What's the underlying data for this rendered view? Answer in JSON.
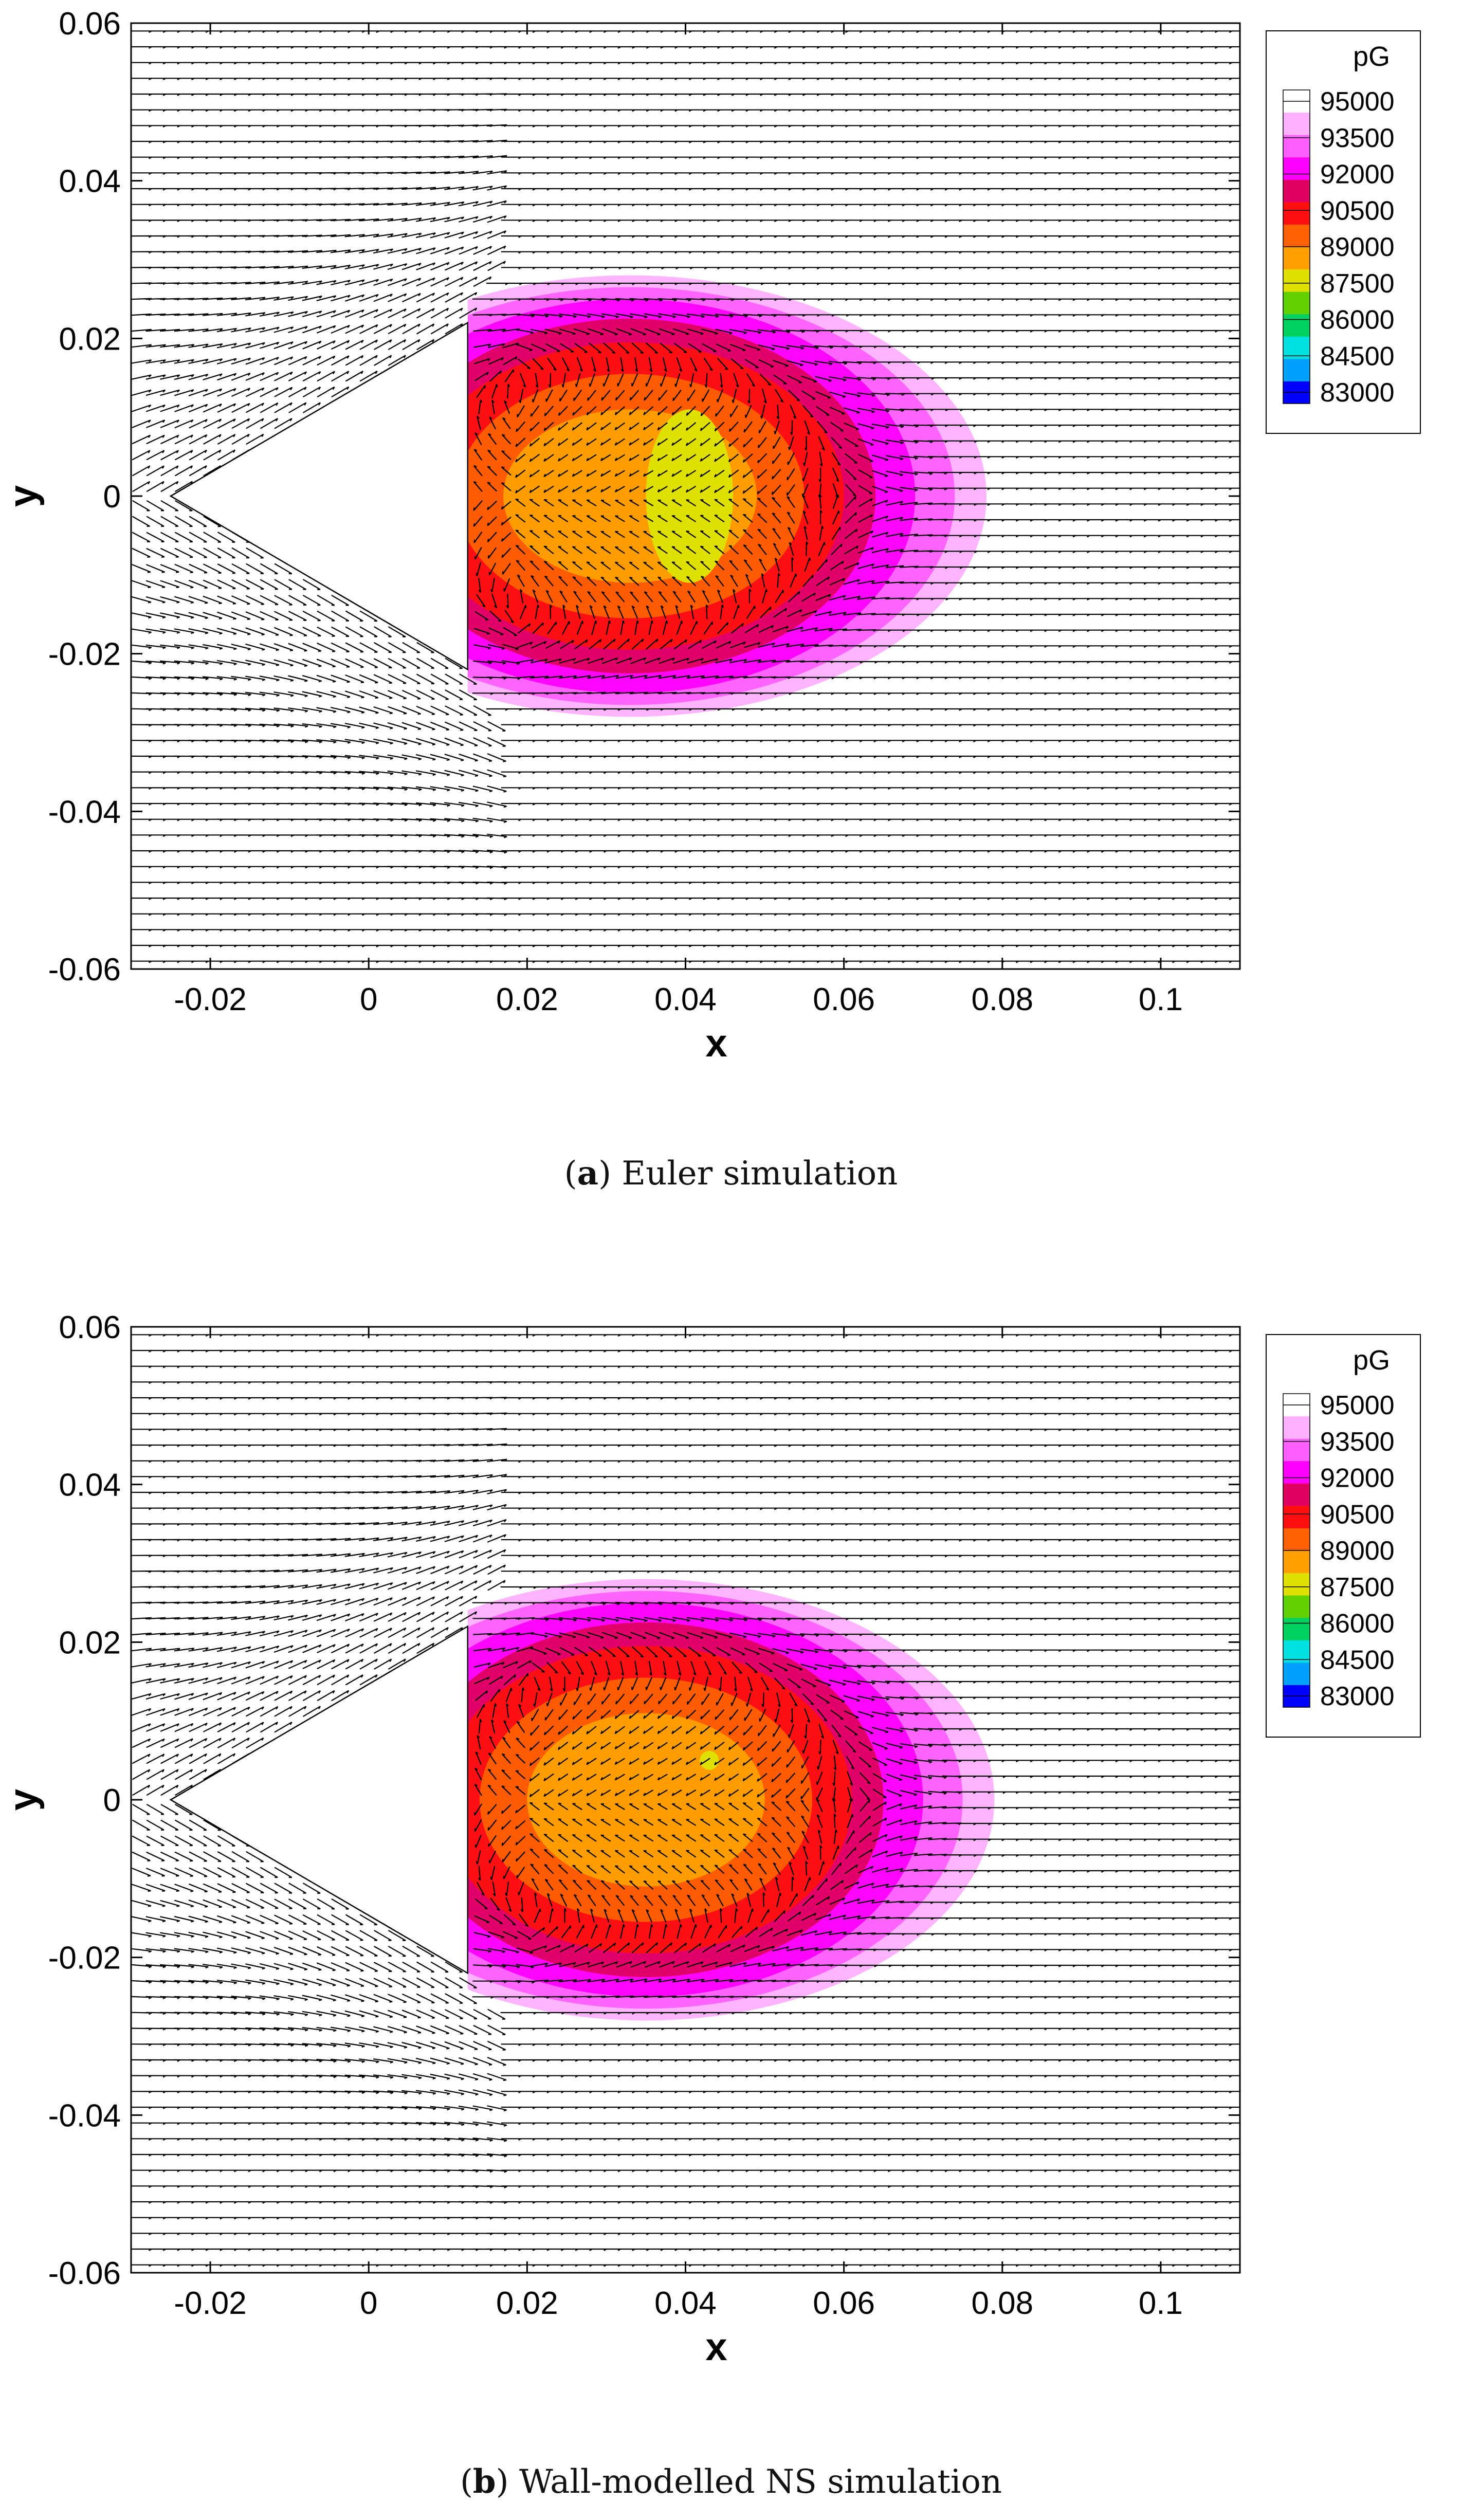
{
  "figure": {
    "caption_a_letter": "a",
    "caption_a_text": " Euler simulation",
    "caption_b_letter": "b",
    "caption_b_text": " Wall-modelled NS simulation"
  },
  "colors": {
    "background": "#ffffff",
    "axis": "#000000",
    "vectors": "#000000",
    "colormap": [
      "#0000ff",
      "#00a0ff",
      "#00e0e0",
      "#00d060",
      "#60d000",
      "#e0e000",
      "#ffa000",
      "#ff6000",
      "#ff1010",
      "#e00060",
      "#ff00ff",
      "#ff60ff",
      "#ffb0ff",
      "#ffffff"
    ]
  },
  "chart_data": [
    {
      "type": "heatmap",
      "overlay": "vector field (velocity arrows)",
      "title": "",
      "xlabel": "x",
      "ylabel": "y",
      "xlim": [
        -0.03,
        0.11
      ],
      "ylim": [
        -0.06,
        0.06
      ],
      "xticks": [
        "-0.02",
        "0",
        "0.02",
        "0.04",
        "0.06",
        "0.08",
        "0.1"
      ],
      "yticks": [
        "-0.06",
        "-0.04",
        "-0.02",
        "0",
        "0.02",
        "0.04",
        "0.06"
      ],
      "legend": {
        "title": "pG",
        "placement": "top-right",
        "levels": [
          "95000",
          "93500",
          "92000",
          "90500",
          "89000",
          "87500",
          "86000",
          "84500",
          "83000"
        ]
      },
      "body": {
        "shape": "wedge",
        "tip": [
          -0.025,
          0.0
        ],
        "base_x": 0.0125,
        "half_height": 0.022
      },
      "wake": {
        "x_range": [
          0.0125,
          0.078
        ],
        "min_pressure_region": "orange-yellow near x=0.04, y=0",
        "min_level_approx": 89000
      }
    },
    {
      "type": "heatmap",
      "overlay": "vector field (velocity arrows)",
      "title": "",
      "xlabel": "x",
      "ylabel": "y",
      "xlim": [
        -0.03,
        0.11
      ],
      "ylim": [
        -0.06,
        0.06
      ],
      "xticks": [
        "-0.02",
        "0",
        "0.02",
        "0.04",
        "0.06",
        "0.08",
        "0.1"
      ],
      "yticks": [
        "-0.06",
        "-0.04",
        "-0.02",
        "0",
        "0.02",
        "0.04",
        "0.06"
      ],
      "legend": {
        "title": "pG",
        "placement": "top-right",
        "levels": [
          "95000",
          "93500",
          "92000",
          "90500",
          "89000",
          "87500",
          "86000",
          "84500",
          "83000"
        ]
      },
      "body": {
        "shape": "wedge",
        "tip": [
          -0.025,
          0.0
        ],
        "base_x": 0.0125,
        "half_height": 0.022
      },
      "wake": {
        "x_range": [
          0.0125,
          0.079
        ],
        "min_pressure_region": "orange near x=0.043, y=0.005",
        "min_level_approx": 90000
      }
    }
  ]
}
